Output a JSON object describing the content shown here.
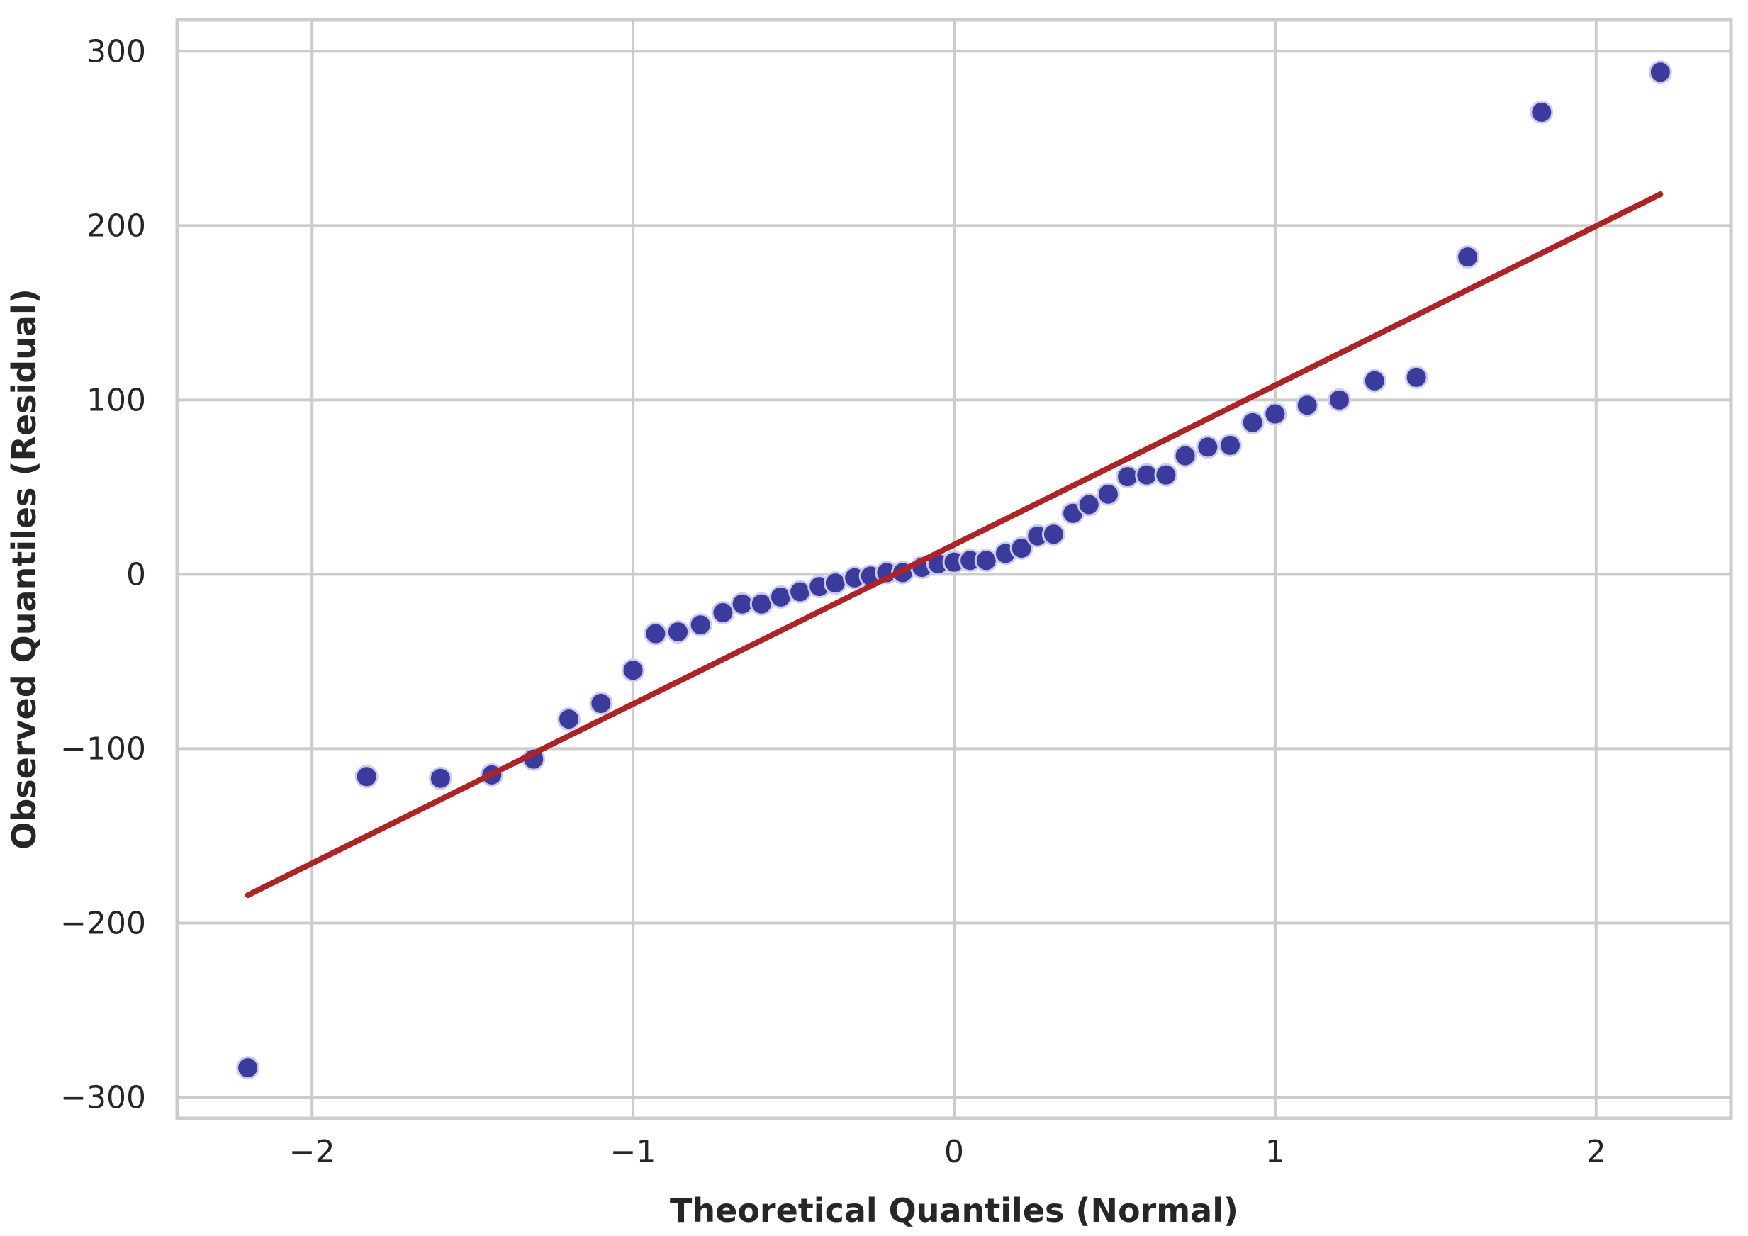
{
  "chart_data": {
    "type": "scatter",
    "title": "",
    "xlabel": "Theoretical Quantiles (Normal)",
    "ylabel": "Observed Quantiles (Residual)",
    "xlim": [
      -2.42,
      2.42
    ],
    "ylim": [
      -312,
      318
    ],
    "x_ticks": [
      -2,
      -1,
      0,
      1,
      2
    ],
    "x_tick_labels": [
      "−2",
      "−1",
      "0",
      "1",
      "2"
    ],
    "y_ticks": [
      -300,
      -200,
      -100,
      0,
      100,
      200,
      300
    ],
    "y_tick_labels": [
      "−300",
      "−200",
      "−100",
      "0",
      "100",
      "200",
      "300"
    ],
    "grid": true,
    "legend": "none",
    "colors": {
      "points": "#3b3b9e",
      "point_edge": "#c9cbef",
      "fit_line": "#b22222",
      "grid": "#cccccc",
      "frame": "#cccccc"
    },
    "series": [
      {
        "kind": "points",
        "points": [
          [
            -2.2,
            -283
          ],
          [
            -1.83,
            -116
          ],
          [
            -1.6,
            -117
          ],
          [
            -1.44,
            -115
          ],
          [
            -1.31,
            -106
          ],
          [
            -1.2,
            -83
          ],
          [
            -1.1,
            -74
          ],
          [
            -1.0,
            -55
          ],
          [
            -0.93,
            -34
          ],
          [
            -0.86,
            -33
          ],
          [
            -0.79,
            -29
          ],
          [
            -0.72,
            -22
          ],
          [
            -0.66,
            -17
          ],
          [
            -0.6,
            -17
          ],
          [
            -0.54,
            -13
          ],
          [
            -0.48,
            -10
          ],
          [
            -0.42,
            -7
          ],
          [
            -0.37,
            -5
          ],
          [
            -0.31,
            -2
          ],
          [
            -0.26,
            -1
          ],
          [
            -0.21,
            1
          ],
          [
            -0.16,
            1
          ],
          [
            -0.1,
            4
          ],
          [
            -0.05,
            6
          ],
          [
            0.0,
            7
          ],
          [
            0.05,
            8
          ],
          [
            0.1,
            8
          ],
          [
            0.16,
            12
          ],
          [
            0.21,
            15
          ],
          [
            0.26,
            22
          ],
          [
            0.31,
            23
          ],
          [
            0.37,
            35
          ],
          [
            0.42,
            40
          ],
          [
            0.48,
            46
          ],
          [
            0.54,
            56
          ],
          [
            0.6,
            57
          ],
          [
            0.66,
            57
          ],
          [
            0.72,
            68
          ],
          [
            0.79,
            73
          ],
          [
            0.86,
            74
          ],
          [
            0.93,
            87
          ],
          [
            1.0,
            92
          ],
          [
            1.1,
            97
          ],
          [
            1.2,
            100
          ],
          [
            1.31,
            111
          ],
          [
            1.44,
            113
          ],
          [
            1.6,
            182
          ],
          [
            1.83,
            265
          ],
          [
            2.2,
            288
          ]
        ]
      },
      {
        "kind": "line",
        "points": [
          [
            -2.2,
            -184
          ],
          [
            2.2,
            218
          ]
        ]
      }
    ]
  }
}
